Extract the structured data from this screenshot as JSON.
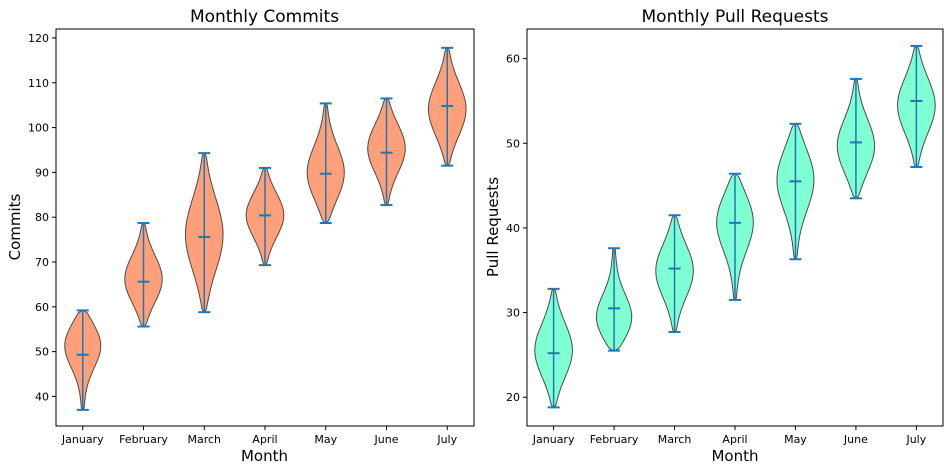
{
  "chart_data": [
    {
      "type": "violin",
      "title": "Monthly Commits",
      "xlabel": "Month",
      "ylabel": "Commits",
      "categories": [
        "January",
        "February",
        "March",
        "April",
        "May",
        "June",
        "July"
      ],
      "ylim": [
        33.4,
        122.0
      ],
      "yticks": [
        40,
        50,
        60,
        70,
        80,
        90,
        100,
        110,
        120
      ],
      "fill_color": "#FFA07A",
      "series": [
        {
          "min": 37.0,
          "max": 59.2,
          "median": 49.3,
          "bulge": 52.0
        },
        {
          "min": 55.6,
          "max": 78.7,
          "median": 65.6,
          "bulge": 66.0
        },
        {
          "min": 58.8,
          "max": 94.3,
          "median": 75.6,
          "bulge": 76.0
        },
        {
          "min": 69.3,
          "max": 91.0,
          "median": 80.4,
          "bulge": 80.5
        },
        {
          "min": 78.7,
          "max": 105.4,
          "median": 89.7,
          "bulge": 89.5
        },
        {
          "min": 82.7,
          "max": 106.5,
          "median": 94.4,
          "bulge": 95.5
        },
        {
          "min": 91.5,
          "max": 117.8,
          "median": 104.8,
          "bulge": 104.0
        }
      ]
    },
    {
      "type": "violin",
      "title": "Monthly Pull Requests",
      "xlabel": "Month",
      "ylabel": "Pull Requests",
      "categories": [
        "January",
        "February",
        "March",
        "April",
        "May",
        "June",
        "July"
      ],
      "ylim": [
        16.6,
        63.5
      ],
      "yticks": [
        20,
        30,
        40,
        50,
        60
      ],
      "fill_color": "#7FFFD4",
      "series": [
        {
          "min": 18.8,
          "max": 32.8,
          "median": 25.2,
          "bulge": 25.5
        },
        {
          "min": 25.5,
          "max": 37.6,
          "median": 30.5,
          "bulge": 29.0
        },
        {
          "min": 27.7,
          "max": 41.5,
          "median": 35.2,
          "bulge": 35.0
        },
        {
          "min": 31.5,
          "max": 46.4,
          "median": 40.6,
          "bulge": 41.0
        },
        {
          "min": 36.3,
          "max": 52.3,
          "median": 45.5,
          "bulge": 46.0
        },
        {
          "min": 43.5,
          "max": 57.6,
          "median": 50.1,
          "bulge": 49.5
        },
        {
          "min": 47.2,
          "max": 61.5,
          "median": 55.0,
          "bulge": 54.5
        }
      ]
    }
  ]
}
